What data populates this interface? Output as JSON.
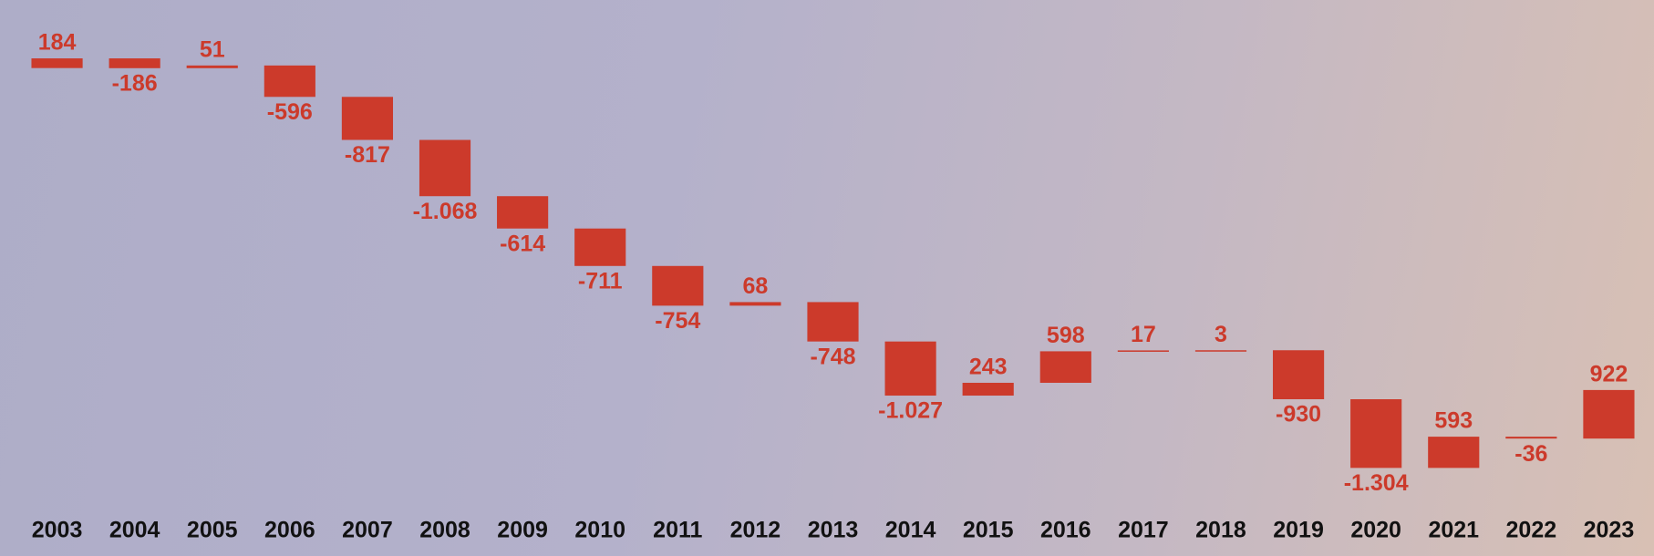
{
  "chart_data": {
    "type": "waterfall",
    "categories": [
      "2003",
      "2004",
      "2005",
      "2006",
      "2007",
      "2008",
      "2009",
      "2010",
      "2011",
      "2012",
      "2013",
      "2014",
      "2015",
      "2016",
      "2017",
      "2018",
      "2019",
      "2020",
      "2021",
      "2022",
      "2023"
    ],
    "values": [
      184,
      -186,
      51,
      -596,
      -817,
      -1068,
      -614,
      -711,
      -754,
      68,
      -748,
      -1027,
      243,
      598,
      17,
      3,
      -930,
      -1304,
      593,
      -36,
      922
    ],
    "value_labels": [
      "184",
      "-186",
      "51",
      "-596",
      "-817",
      "-1.068",
      "-614",
      "-711",
      "-754",
      "68",
      "-748",
      "-1.027",
      "243",
      "598",
      "17",
      "3",
      "-930",
      "-1.304",
      "593",
      "-36",
      "922"
    ],
    "color": "#cc3a2b",
    "ylim": [
      -8000,
      600
    ]
  }
}
